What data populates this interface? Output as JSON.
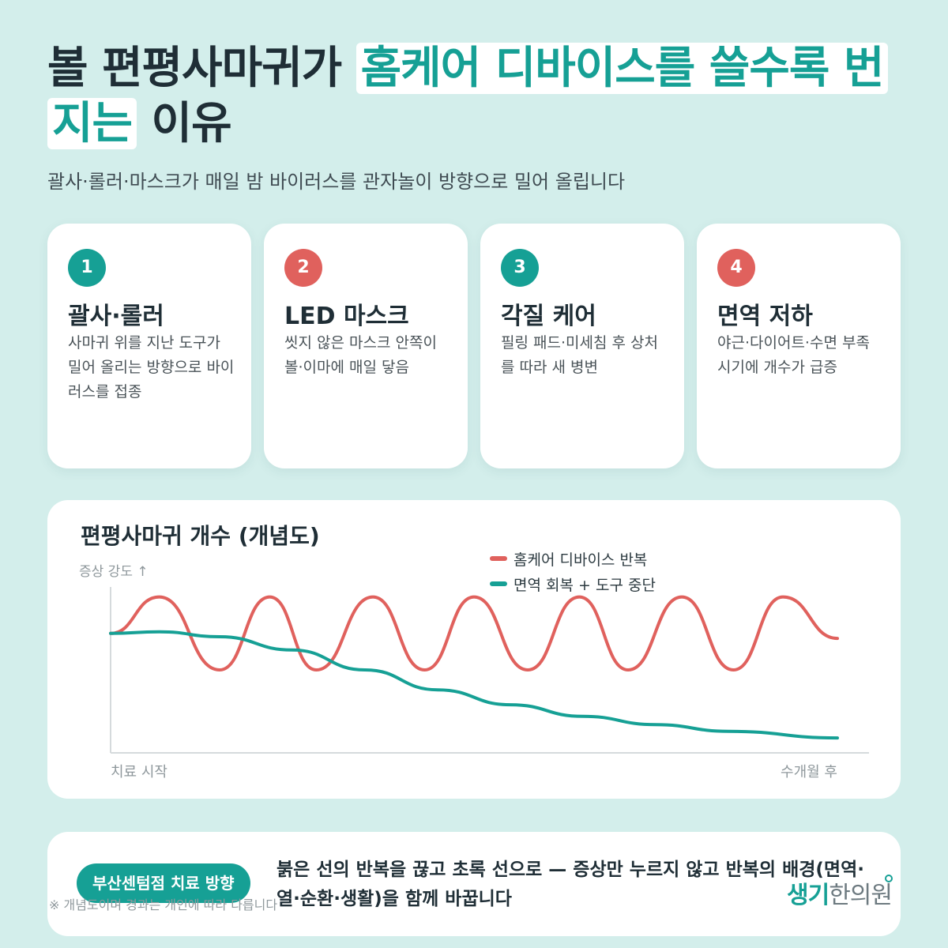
{
  "header": {
    "title_part1": "볼 편평사마귀가 ",
    "title_highlight": "홈케어 디바이스를 쓸수록 번지는",
    "title_part2": " 이유",
    "subtitle": "괄사·롤러·마스크가 매일 밤 바이러스를 관자놀이 방향으로 밀어 올립니다"
  },
  "cards": [
    {
      "number": "1",
      "title": "괄사·롤러",
      "desc": "사마귀 위를 지난 도구가 밀어 올리는 방향으로 바이러스를 접종",
      "color": "#16a095"
    },
    {
      "number": "2",
      "title": "LED 마스크",
      "desc": "씻지 않은 마스크 안쪽이 볼·이마에 매일 닿음",
      "color": "#e0615d"
    },
    {
      "number": "3",
      "title": "각질 케어",
      "desc": "필링 패드·미세침 후 상처를 따라 새 병변",
      "color": "#16a095"
    },
    {
      "number": "4",
      "title": "면역 저하",
      "desc": "야근·다이어트·수면 부족 시기에 개수가 급증",
      "color": "#e0615d"
    }
  ],
  "chart": {
    "title": "편평사마귀 개수 (개념도)",
    "ylabel": "증상 강도 ↑",
    "x_start": "치료 시작",
    "x_end": "수개월 후",
    "legend": [
      {
        "label": "홈케어 디바이스 반복",
        "color": "#e0615d"
      },
      {
        "label": "면역 회복 + 도구 중단",
        "color": "#16a095"
      }
    ]
  },
  "chart_data": {
    "type": "line",
    "title": "편평사마귀 개수 (개념도)",
    "ylabel": "증상 강도 ↑",
    "x_tick_labels": [
      "치료 시작",
      "수개월 후"
    ],
    "ylim": [
      0,
      10
    ],
    "grid": false,
    "legend_position": "top-right",
    "series": [
      {
        "name": "홈케어 디바이스 반복",
        "color": "#e0615d",
        "x": [
          0,
          0.067,
          0.15,
          0.219,
          0.283,
          0.361,
          0.432,
          0.5,
          0.574,
          0.645,
          0.712,
          0.786,
          0.857,
          0.925,
          1.0
        ],
        "y": [
          7.2,
          9.4,
          5.0,
          9.4,
          5.0,
          9.4,
          5.0,
          9.4,
          5.0,
          9.4,
          5.0,
          9.4,
          5.0,
          9.4,
          6.9
        ]
      },
      {
        "name": "면역 회복 + 도구 중단",
        "color": "#16a095",
        "x": [
          0,
          0.067,
          0.15,
          0.25,
          0.35,
          0.45,
          0.55,
          0.65,
          0.75,
          0.85,
          1.0
        ],
        "y": [
          7.2,
          7.3,
          7.0,
          6.2,
          5.0,
          3.8,
          2.9,
          2.2,
          1.7,
          1.3,
          0.9
        ]
      }
    ]
  },
  "note": {
    "badge": "부산센텀점 치료 방향",
    "text": "붉은 선의 반복을 끊고 초록 선으로 — 증상만 누르지 않고 반복의 배경(면역·열·순환·생활)을 함께 바꿉니다"
  },
  "disclaimer": "※ 개념도이며 경과는 개인에 따라 다릅니다",
  "logo": {
    "part1": "생기",
    "part2": "한의원"
  }
}
